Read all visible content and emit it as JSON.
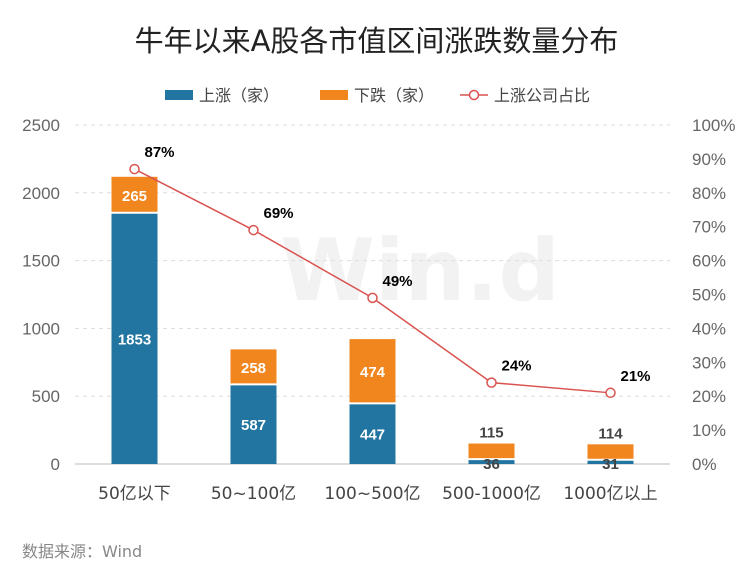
{
  "title": "牛年以来A股各市值区间涨跌数量分布",
  "source": "数据来源：Wind",
  "watermark": "Win.d",
  "chart_data": {
    "type": "bar",
    "stacked": true,
    "title": "牛年以来A股各市值区间涨跌数量分布",
    "categories": [
      "50亿以下",
      "50~100亿",
      "100~500亿",
      "500-1000亿",
      "1000亿以上"
    ],
    "series": [
      {
        "name": "上涨（家）",
        "axis": "left",
        "values": [
          1853,
          587,
          447,
          36,
          31
        ],
        "color": "#2275a0"
      },
      {
        "name": "下跌（家）",
        "axis": "left",
        "values": [
          265,
          258,
          474,
          115,
          114
        ],
        "color": "#f0861d"
      },
      {
        "name": "上涨公司占比",
        "type": "line",
        "axis": "right",
        "values": [
          87,
          69,
          49,
          24,
          21
        ],
        "labels": [
          "87%",
          "69%",
          "49%",
          "24%",
          "21%"
        ],
        "color": "#d9534f"
      }
    ],
    "y_left": {
      "min": 0,
      "max": 2500,
      "ticks": [
        "0",
        "500",
        "1000",
        "1500",
        "2000",
        "2500"
      ]
    },
    "y_right": {
      "min": 0,
      "max": 100,
      "ticks": [
        "0%",
        "10%",
        "20%",
        "30%",
        "40%",
        "50%",
        "60%",
        "70%",
        "80%",
        "90%",
        "100%"
      ]
    },
    "legend_position": "top-center",
    "grid": true
  }
}
